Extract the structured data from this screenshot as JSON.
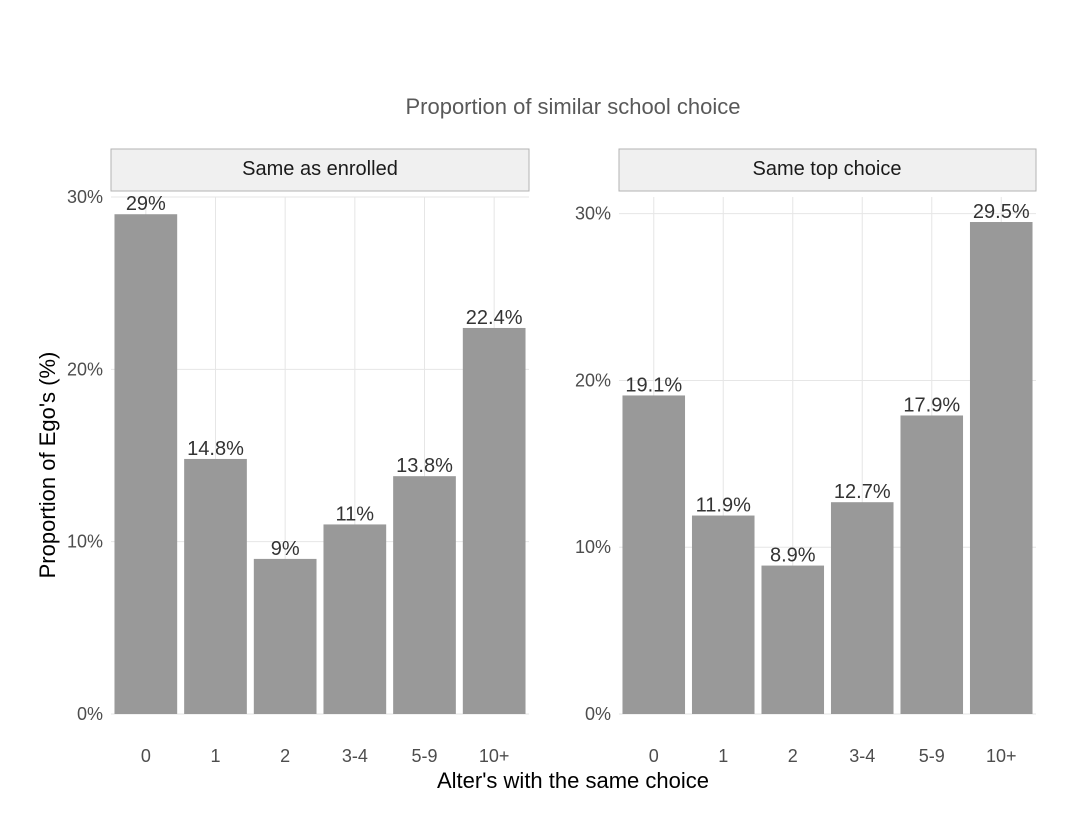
{
  "chart_data": {
    "type": "bar",
    "title": "Proportion of similar school choice",
    "xlabel": "Alter's with the same choice",
    "ylabel": "Proportion of Ego's (%)",
    "categories": [
      "0",
      "1",
      "2",
      "3-4",
      "5-9",
      "10+"
    ],
    "ylim": [
      0,
      30
    ],
    "yticks": [
      "0%",
      "10%",
      "20%",
      "30%"
    ],
    "panels": [
      {
        "name": "Same as enrolled",
        "values": [
          29,
          14.8,
          9,
          11,
          13.8,
          22.4
        ],
        "labels": [
          "29%",
          "14.8%",
          "9%",
          "11%",
          "13.8%",
          "22.4%"
        ],
        "ymax": 30.0
      },
      {
        "name": "Same top choice",
        "values": [
          19.1,
          11.9,
          8.9,
          12.7,
          17.9,
          29.5
        ],
        "labels": [
          "19.1%",
          "11.9%",
          "8.9%",
          "12.7%",
          "17.9%",
          "29.5%"
        ],
        "ymax": 31.0
      }
    ],
    "bar_color": "#999999",
    "grid": true,
    "legend": "none"
  }
}
